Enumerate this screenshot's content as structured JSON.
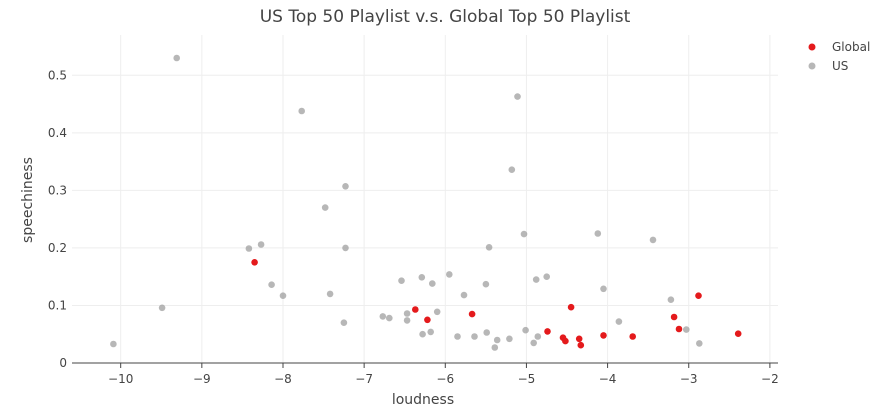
{
  "chart_data": {
    "type": "scatter",
    "title": "US Top 50 Playlist v.s. Global Top 50 Playlist",
    "xlabel": "loudness",
    "ylabel": "speechiness",
    "xlim": [
      -10.6,
      -1.9
    ],
    "ylim": [
      0,
      0.57
    ],
    "xticks": [
      -10,
      -9,
      -8,
      -7,
      -6,
      -5,
      -4,
      -3,
      -2
    ],
    "xtick_labels": [
      "−10",
      "−9",
      "−8",
      "−7",
      "−6",
      "−5",
      "−4",
      "−3",
      "−2"
    ],
    "yticks": [
      0,
      0.1,
      0.2,
      0.3,
      0.4,
      0.5
    ],
    "ytick_labels": [
      "0",
      "0.1",
      "0.2",
      "0.3",
      "0.4",
      "0.5"
    ],
    "grid": true,
    "legend_position": "top-right",
    "series": [
      {
        "name": "Global",
        "color": "#e41a1c",
        "points": [
          [
            -8.35,
            0.175
          ],
          [
            -6.37,
            0.093
          ],
          [
            -6.22,
            0.075
          ],
          [
            -5.67,
            0.085
          ],
          [
            -4.74,
            0.055
          ],
          [
            -4.55,
            0.044
          ],
          [
            -4.52,
            0.038
          ],
          [
            -4.45,
            0.097
          ],
          [
            -4.35,
            0.042
          ],
          [
            -4.33,
            0.031
          ],
          [
            -4.05,
            0.048
          ],
          [
            -3.69,
            0.046
          ],
          [
            -3.18,
            0.08
          ],
          [
            -3.12,
            0.059
          ],
          [
            -2.88,
            0.117
          ],
          [
            -2.39,
            0.051
          ]
        ]
      },
      {
        "name": "US",
        "color": "#999999",
        "opacity": 0.7,
        "points": [
          [
            -10.09,
            0.033
          ],
          [
            -9.49,
            0.096
          ],
          [
            -9.31,
            0.53
          ],
          [
            -8.42,
            0.199
          ],
          [
            -8.27,
            0.206
          ],
          [
            -8.14,
            0.136
          ],
          [
            -8.0,
            0.117
          ],
          [
            -7.77,
            0.438
          ],
          [
            -7.48,
            0.27
          ],
          [
            -7.42,
            0.12
          ],
          [
            -7.25,
            0.07
          ],
          [
            -7.23,
            0.307
          ],
          [
            -7.23,
            0.2
          ],
          [
            -6.77,
            0.081
          ],
          [
            -6.69,
            0.078
          ],
          [
            -6.54,
            0.143
          ],
          [
            -6.47,
            0.086
          ],
          [
            -6.47,
            0.074
          ],
          [
            -6.29,
            0.149
          ],
          [
            -6.28,
            0.05
          ],
          [
            -6.18,
            0.054
          ],
          [
            -6.16,
            0.138
          ],
          [
            -6.1,
            0.089
          ],
          [
            -5.95,
            0.154
          ],
          [
            -5.85,
            0.046
          ],
          [
            -5.77,
            0.118
          ],
          [
            -5.64,
            0.046
          ],
          [
            -5.5,
            0.137
          ],
          [
            -5.49,
            0.053
          ],
          [
            -5.46,
            0.201
          ],
          [
            -5.39,
            0.027
          ],
          [
            -5.36,
            0.04
          ],
          [
            -5.21,
            0.042
          ],
          [
            -5.18,
            0.336
          ],
          [
            -5.11,
            0.463
          ],
          [
            -5.03,
            0.224
          ],
          [
            -5.01,
            0.057
          ],
          [
            -4.91,
            0.035
          ],
          [
            -4.88,
            0.145
          ],
          [
            -4.86,
            0.046
          ],
          [
            -4.75,
            0.15
          ],
          [
            -4.12,
            0.225
          ],
          [
            -4.05,
            0.129
          ],
          [
            -3.86,
            0.072
          ],
          [
            -3.44,
            0.214
          ],
          [
            -3.22,
            0.11
          ],
          [
            -3.03,
            0.058
          ],
          [
            -2.87,
            0.034
          ]
        ]
      }
    ]
  }
}
